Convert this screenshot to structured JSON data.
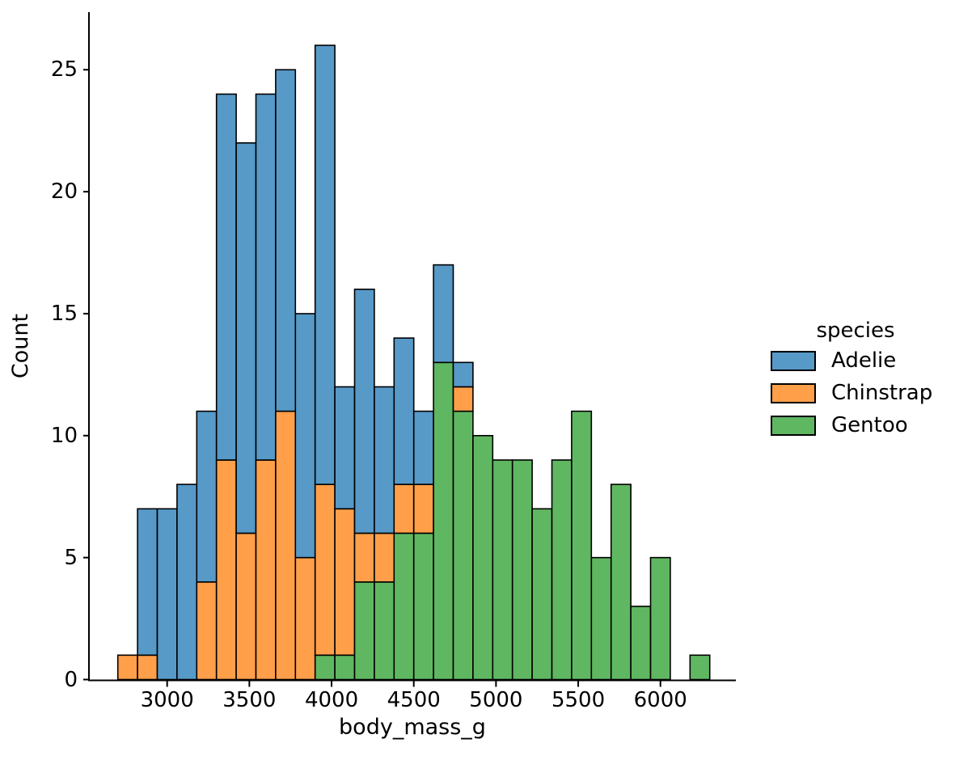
{
  "chart_data": {
    "type": "bar",
    "subtype": "stacked-histogram",
    "title": "",
    "xlabel": "body_mass_g",
    "ylabel": "Count",
    "legend_title": "species",
    "legend_position": "right-center",
    "grid": false,
    "bar_edge_color": "#000000",
    "background_color": "#ffffff",
    "text_color": "#000000",
    "bin_edges": [
      2700,
      2820,
      2940,
      3060,
      3180,
      3300,
      3420,
      3540,
      3660,
      3780,
      3900,
      4020,
      4140,
      4260,
      4380,
      4500,
      4620,
      4740,
      4860,
      4980,
      5100,
      5220,
      5340,
      5460,
      5580,
      5700,
      5820,
      5940,
      6060,
      6180,
      6300
    ],
    "stack_bottom_to_top": [
      "Gentoo",
      "Chinstrap",
      "Adelie"
    ],
    "series": [
      {
        "name": "Adelie",
        "color": "#5799C7",
        "values": [
          0,
          6,
          7,
          8,
          7,
          15,
          16,
          15,
          14,
          10,
          18,
          5,
          10,
          6,
          6,
          3,
          4,
          1,
          0,
          0,
          0,
          0,
          0,
          0,
          0,
          0,
          0,
          0,
          0,
          0
        ]
      },
      {
        "name": "Chinstrap",
        "color": "#FF9F4A",
        "values": [
          1,
          1,
          0,
          0,
          4,
          9,
          6,
          9,
          11,
          5,
          7,
          6,
          2,
          2,
          2,
          2,
          0,
          1,
          0,
          0,
          0,
          0,
          0,
          0,
          0,
          0,
          0,
          0,
          0,
          0
        ]
      },
      {
        "name": "Gentoo",
        "color": "#60B761",
        "values": [
          0,
          0,
          0,
          0,
          0,
          0,
          0,
          0,
          0,
          0,
          1,
          1,
          4,
          4,
          6,
          6,
          13,
          11,
          10,
          9,
          9,
          7,
          9,
          11,
          5,
          8,
          3,
          5,
          0,
          1
        ]
      }
    ],
    "xticks": [
      3000,
      3500,
      4000,
      4500,
      5000,
      5500,
      6000
    ],
    "yticks": [
      0,
      5,
      10,
      15,
      20,
      25
    ],
    "xlim": [
      2503,
      6460
    ],
    "ylim": [
      0,
      27.35
    ]
  }
}
